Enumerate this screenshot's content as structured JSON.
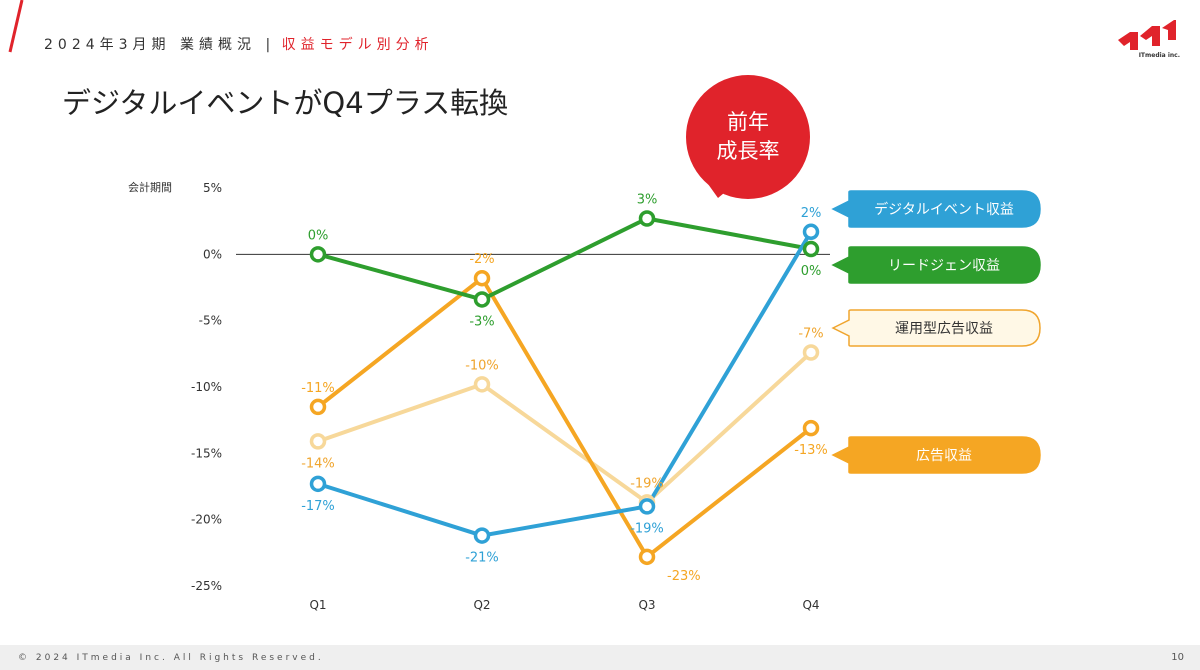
{
  "header": {
    "breadcrumb_main": "2024年3月期 業績概況",
    "breadcrumb_sep": "|",
    "breadcrumb_sub": "収益モデル別分析",
    "logo_text": "ITmedia inc."
  },
  "headline": "デジタルイベントがQ4プラス転換",
  "bubble": {
    "line1": "前年",
    "line2": "成長率",
    "color": "#e0232b"
  },
  "footer": {
    "copyright": "© 2024 ITmedia Inc. All Rights Reserved.",
    "page_number": "10"
  },
  "chart_data": {
    "type": "line",
    "ylabel": "会計期間",
    "categories": [
      "Q1",
      "Q2",
      "Q3",
      "Q4"
    ],
    "ylim": [
      -25,
      5
    ],
    "yticks": [
      5,
      0,
      -5,
      -10,
      -15,
      -20,
      -25
    ],
    "ytick_labels": [
      "5%",
      "0%",
      "-5%",
      "-10%",
      "-15%",
      "-20%",
      "-25%"
    ],
    "zero_line": true,
    "grid": false,
    "legend_position": "right",
    "series": [
      {
        "name": "デジタルイベント収益",
        "color": "#2fa1d6",
        "values": [
          -17.3,
          -21.2,
          -19.0,
          1.7
        ],
        "labels": [
          "-17%",
          "-21%",
          "-19%",
          "2%"
        ],
        "label_pos": [
          "below",
          "below",
          "below",
          "above"
        ],
        "legend_fill": true
      },
      {
        "name": "リードジェン収益",
        "color": "#2e9e2e",
        "values": [
          0.0,
          -3.4,
          2.7,
          0.4
        ],
        "labels": [
          "0%",
          "-3%",
          "3%",
          "0%"
        ],
        "label_pos": [
          "above",
          "below",
          "above",
          "below"
        ],
        "legend_fill": true
      },
      {
        "name": "運用型広告収益",
        "color": "#f7d89a",
        "label_color": "#f0a52e",
        "values": [
          -14.1,
          -9.8,
          -18.7,
          -7.4
        ],
        "labels": [
          "-14%",
          "-10%",
          "-19%",
          "-7%"
        ],
        "label_pos": [
          "below",
          "above",
          "above",
          "above"
        ],
        "legend_fill": false
      },
      {
        "name": "広告収益",
        "color": "#f5a623",
        "values": [
          -11.5,
          -1.8,
          -22.8,
          -13.1
        ],
        "labels": [
          "-11%",
          "-2%",
          "-23%",
          "-13%"
        ],
        "label_pos": [
          "above",
          "above",
          "below-right",
          "below"
        ],
        "legend_fill": true
      }
    ]
  }
}
